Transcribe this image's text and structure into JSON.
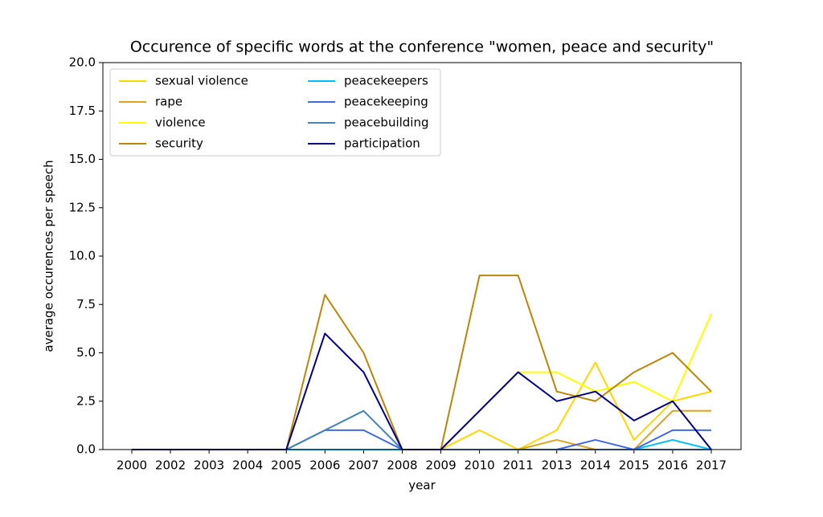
{
  "chart_data": {
    "type": "line",
    "title": "Occurence of specific words at the conference \"women, peace and security\"",
    "x_label": "year",
    "y_label": "average occurences per speech",
    "categories": [
      "2000",
      "2002",
      "2003",
      "2004",
      "2005",
      "2006",
      "2007",
      "2008",
      "2009",
      "2010",
      "2011",
      "2013",
      "2014",
      "2015",
      "2016",
      "2017"
    ],
    "series": [
      {
        "name": "sexual violence",
        "color": "#ffd700",
        "values": [
          0,
          0,
          0,
          0,
          0,
          0,
          0,
          0,
          0,
          1,
          0,
          1,
          4.5,
          0.5,
          2.5,
          3
        ]
      },
      {
        "name": "rape",
        "color": "#daa520",
        "values": [
          0,
          0,
          0,
          0,
          0,
          0,
          0,
          0,
          0,
          0,
          0,
          0.5,
          0,
          0,
          2,
          2
        ]
      },
      {
        "name": "violence",
        "color": "#ffff00",
        "values": [
          0,
          0,
          0,
          0,
          0,
          0,
          0,
          0,
          0,
          2,
          4,
          4,
          3,
          3.5,
          2.5,
          7
        ]
      },
      {
        "name": "security",
        "color": "#b8860b",
        "values": [
          0,
          0,
          0,
          0,
          0,
          8,
          5,
          0,
          0,
          9,
          9,
          3,
          2.5,
          4,
          5,
          3
        ]
      },
      {
        "name": "peacekeepers",
        "color": "#00bfff",
        "values": [
          0,
          0,
          0,
          0,
          0,
          0,
          0,
          0,
          0,
          0,
          0,
          0,
          0,
          0,
          0.5,
          0
        ]
      },
      {
        "name": "peacekeeping",
        "color": "#4169e1",
        "values": [
          0,
          0,
          0,
          0,
          0,
          1,
          1,
          0,
          0,
          0,
          0,
          0,
          0.5,
          0,
          1,
          1
        ]
      },
      {
        "name": "peacebuilding",
        "color": "#4682b4",
        "values": [
          0,
          0,
          0,
          0,
          0,
          1,
          2,
          0,
          0,
          0,
          0,
          0,
          0,
          0,
          0,
          0
        ]
      },
      {
        "name": "participation",
        "color": "#000080",
        "values": [
          0,
          0,
          0,
          0,
          0,
          6,
          4,
          0,
          0,
          2,
          4,
          2.5,
          3,
          1.5,
          2.5,
          0
        ]
      }
    ],
    "ylim": [
      0,
      20
    ],
    "yticks": [
      {
        "value": 0,
        "label": "0.0"
      },
      {
        "value": 2.5,
        "label": "2.5"
      },
      {
        "value": 5,
        "label": "5.0"
      },
      {
        "value": 7.5,
        "label": "7.5"
      },
      {
        "value": 10,
        "label": "10.0"
      },
      {
        "value": 12.5,
        "label": "12.5"
      },
      {
        "value": 15,
        "label": "15.0"
      },
      {
        "value": 17.5,
        "label": "17.5"
      },
      {
        "value": 20,
        "label": "20.0"
      }
    ],
    "legend": "upper left",
    "grid": false
  }
}
